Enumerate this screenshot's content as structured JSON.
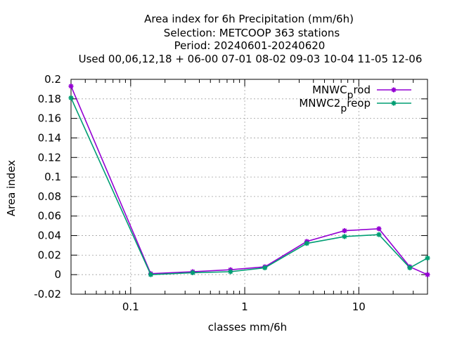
{
  "chart_data": {
    "type": "line",
    "title_lines": [
      "Area index  for 6h Precipitation (mm/6h)",
      "Selection: METCOOP    363 stations",
      "Period: 20240601-20240620",
      "Used  00,06,12,18 + 06-00 07-01 08-02 09-03 10-04 11-05 12-06"
    ],
    "xlabel": "classes mm/6h",
    "ylabel": "Area index",
    "x_scale": "log",
    "xlim": [
      0.03,
      40
    ],
    "ylim": [
      -0.02,
      0.2
    ],
    "x_ticks": [
      {
        "value": 0.1,
        "label": "0.1"
      },
      {
        "value": 1,
        "label": "1"
      },
      {
        "value": 10,
        "label": "10"
      }
    ],
    "y_ticks": [
      -0.02,
      0,
      0.02,
      0.04,
      0.06,
      0.08,
      0.1,
      0.12,
      0.14,
      0.16,
      0.18,
      0.2
    ],
    "y_tick_labels": [
      "-0.02",
      "0",
      "0.02",
      "0.04",
      "0.06",
      "0.08",
      "0.1",
      "0.12",
      "0.14",
      "0.16",
      "0.18",
      "0.2"
    ],
    "grid": true,
    "legend_position": "top-right",
    "x": [
      0.03,
      0.15,
      0.35,
      0.75,
      1.5,
      3.5,
      7.5,
      15,
      28,
      40
    ],
    "series": [
      {
        "name": "MNWC_prod",
        "legend_main": "MNWC",
        "legend_sub": "p",
        "legend_rest": "rod",
        "color": "#9400d3",
        "values": [
          0.193,
          0.001,
          0.003,
          0.005,
          0.008,
          0.034,
          0.045,
          0.047,
          0.008,
          0.0
        ]
      },
      {
        "name": "MNWC2_preop",
        "legend_main": "MNWC2",
        "legend_sub": "p",
        "legend_rest": "reop",
        "color": "#009e73",
        "values": [
          0.181,
          0.0,
          0.002,
          0.003,
          0.007,
          0.032,
          0.039,
          0.041,
          0.007,
          0.017
        ]
      }
    ]
  }
}
